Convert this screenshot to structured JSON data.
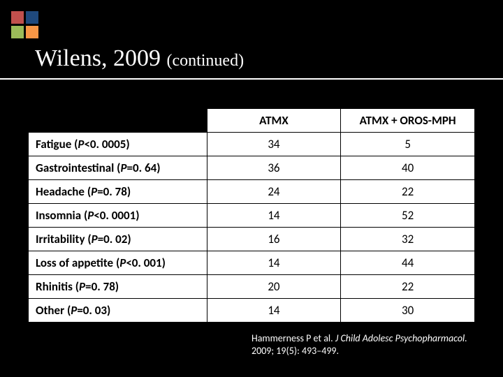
{
  "logo": {
    "colors": [
      "#c0504d",
      "#1f497d",
      "#9bbb59",
      "#f79646"
    ]
  },
  "title": {
    "main": "Wilens, 2009 ",
    "sub": "(continued)"
  },
  "table": {
    "columns": [
      "ATMX",
      "ATMX + OROS-MPH"
    ],
    "rows": [
      {
        "label": "Fatigue (P<0. 0005)",
        "values": [
          "34",
          "5"
        ]
      },
      {
        "label": "Gastrointestinal (P=0. 64)",
        "values": [
          "36",
          "40"
        ]
      },
      {
        "label": "Headache (P=0. 78)",
        "values": [
          "24",
          "22"
        ]
      },
      {
        "label": "Insomnia (P<0. 0001)",
        "values": [
          "14",
          "52"
        ]
      },
      {
        "label": "Irritability (P=0. 02)",
        "values": [
          "16",
          "32"
        ]
      },
      {
        "label": "Loss of appetite (P<0. 001)",
        "values": [
          "14",
          "44"
        ]
      },
      {
        "label": "Rhinitis (P=0. 78)",
        "values": [
          "20",
          "22"
        ]
      },
      {
        "label": "Other (P=0. 03)",
        "values": [
          "14",
          "30"
        ]
      }
    ],
    "col_widths": [
      "40%",
      "30%",
      "30%"
    ],
    "header_bg": "#ffffff",
    "cell_bg": "#ffffff",
    "border_color": "#000000",
    "font_size": 17
  },
  "citation": {
    "author": "Hammerness P et al. ",
    "journal": "J Child Adolesc Psychopharmacol. ",
    "rest": "2009; 19(5): 493–499."
  },
  "background_color": "#000000"
}
